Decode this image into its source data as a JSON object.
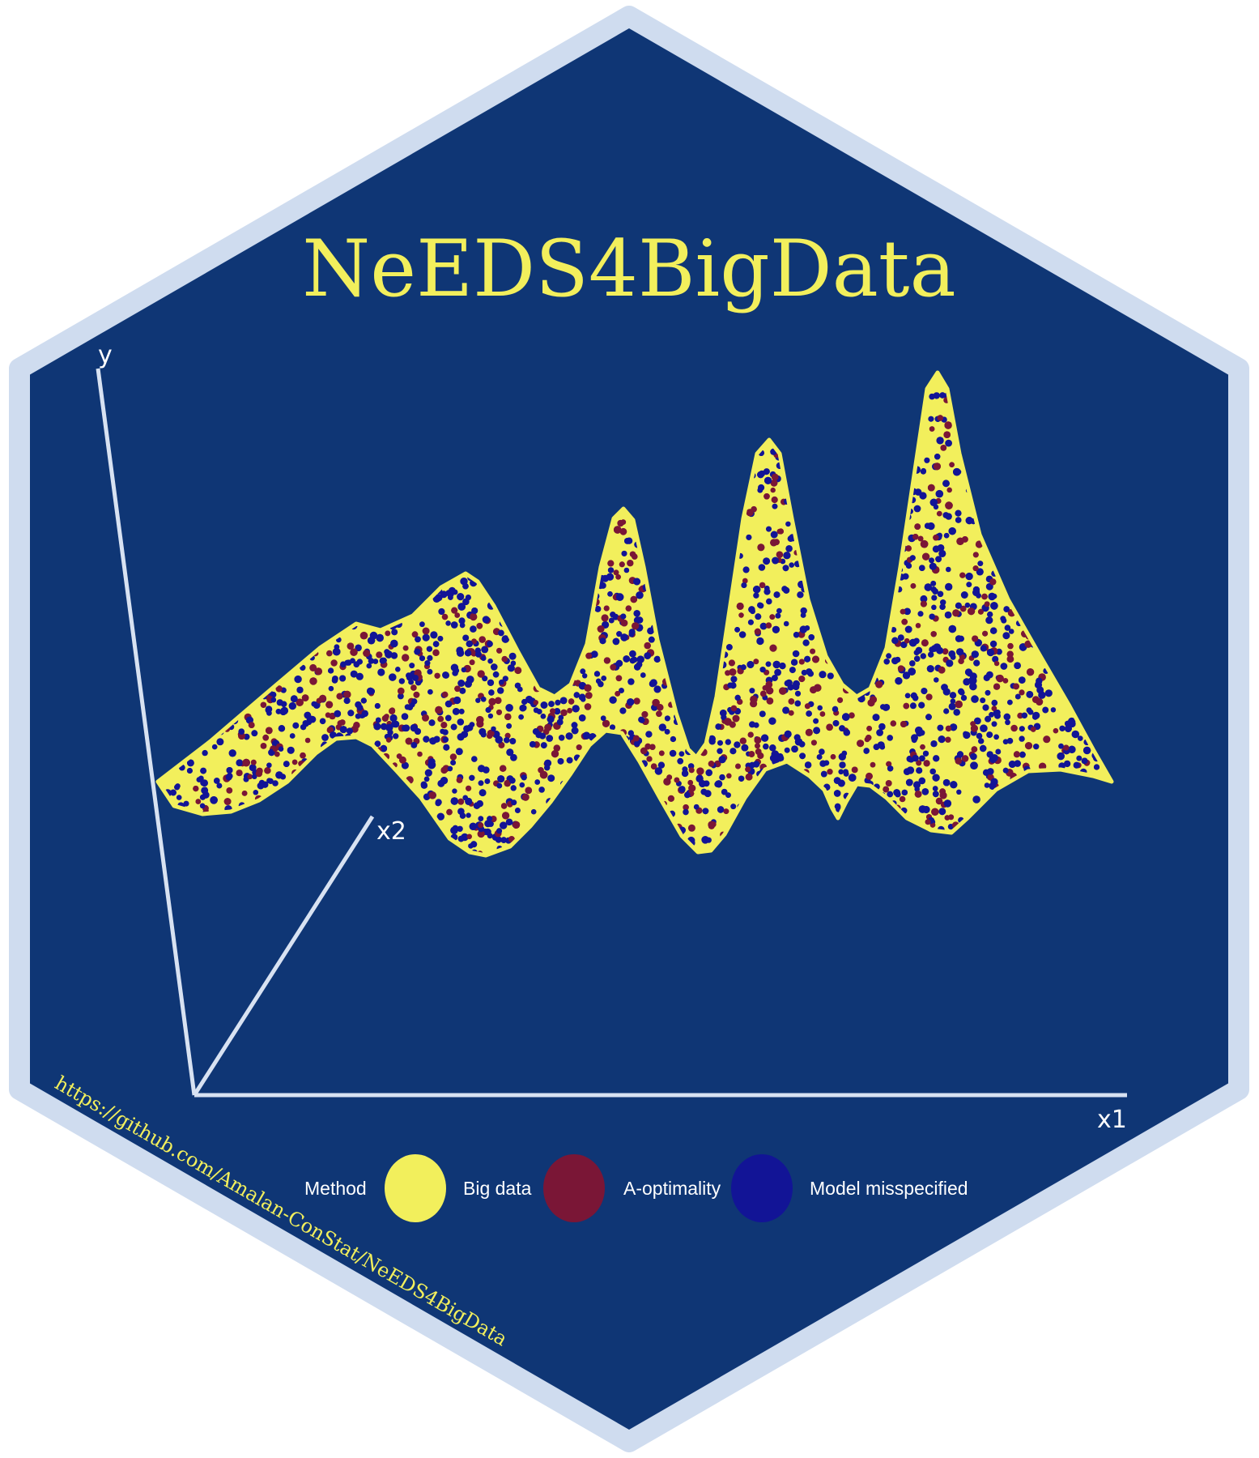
{
  "title": "NeEDS4BigData",
  "url": "https://github.com/Amalan-ConStat/NeEDS4BigData",
  "axes": {
    "y": "y",
    "x1": "x1",
    "x2": "x2"
  },
  "legend": {
    "title": "Method",
    "items": [
      {
        "label": "Big data",
        "color": "#f2ef5c"
      },
      {
        "label": "A-optimality",
        "color": "#7a1636"
      },
      {
        "label": "Model misspecified",
        "color": "#121496"
      }
    ]
  },
  "colors": {
    "background": "#0f3675",
    "border": "#cfdcef",
    "title": "#f2ef5c",
    "axis": "#d8e2f2",
    "label": "#ffffff"
  }
}
